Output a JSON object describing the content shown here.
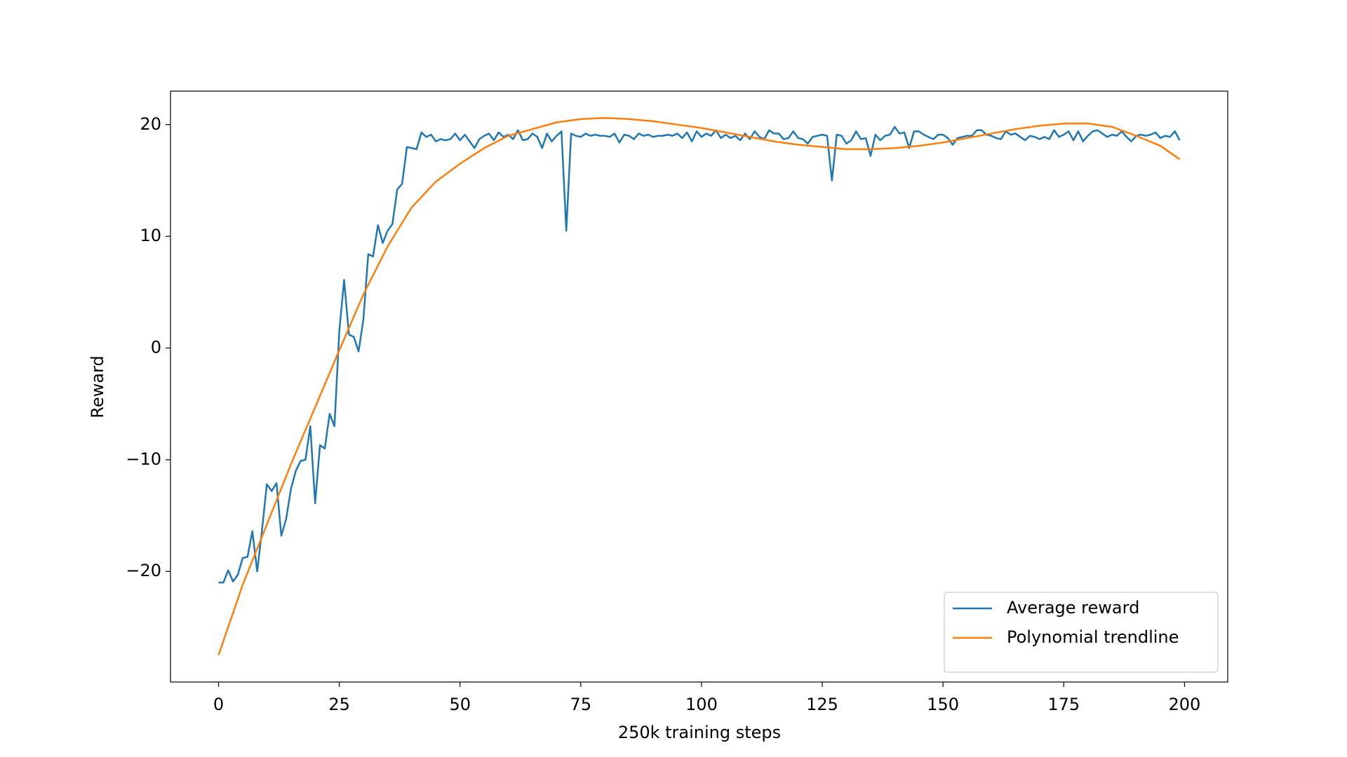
{
  "chart_data": {
    "type": "line",
    "xlabel": "250k training steps",
    "ylabel": "Reward",
    "xlim": [
      -9.95,
      208.95
    ],
    "ylim": [
      -29.9,
      23.0
    ],
    "xticks": [
      0,
      25,
      50,
      75,
      100,
      125,
      150,
      175,
      200
    ],
    "yticks": [
      {
        "value": -20,
        "label": "−20"
      },
      {
        "value": -10,
        "label": "−10"
      },
      0,
      10,
      20
    ],
    "legend": "lower right",
    "series": [
      {
        "name": "Average reward",
        "color": "#1f77b4",
        "x": [
          0,
          1,
          2,
          3,
          4,
          5,
          6,
          7,
          8,
          9,
          10,
          11,
          12,
          13,
          14,
          15,
          16,
          17,
          18,
          19,
          20,
          21,
          22,
          23,
          24,
          25,
          26,
          27,
          28,
          29,
          30,
          31,
          32,
          33,
          34,
          35,
          36,
          37,
          38,
          39,
          40,
          41,
          42,
          43,
          44,
          45,
          46,
          47,
          48,
          49,
          50,
          51,
          52,
          53,
          54,
          55,
          56,
          57,
          58,
          59,
          60,
          61,
          62,
          63,
          64,
          65,
          66,
          67,
          68,
          69,
          70,
          71,
          72,
          73,
          74,
          75,
          76,
          77,
          78,
          79,
          80,
          81,
          82,
          83,
          84,
          85,
          86,
          87,
          88,
          89,
          90,
          91,
          92,
          93,
          94,
          95,
          96,
          97,
          98,
          99,
          100,
          101,
          102,
          103,
          104,
          105,
          106,
          107,
          108,
          109,
          110,
          111,
          112,
          113,
          114,
          115,
          116,
          117,
          118,
          119,
          120,
          121,
          122,
          123,
          124,
          125,
          126,
          127,
          128,
          129,
          130,
          131,
          132,
          133,
          134,
          135,
          136,
          137,
          138,
          139,
          140,
          141,
          142,
          143,
          144,
          145,
          146,
          147,
          148,
          149,
          150,
          151,
          152,
          153,
          154,
          155,
          156,
          157,
          158,
          159,
          160,
          161,
          162,
          163,
          164,
          165,
          166,
          167,
          168,
          169,
          170,
          171,
          172,
          173,
          174,
          175,
          176,
          177,
          178,
          179,
          180,
          181,
          182,
          183,
          184,
          185,
          186,
          187,
          188,
          189,
          190,
          191,
          192,
          193,
          194,
          195,
          196,
          197,
          198,
          199
        ],
        "values": [
          -21,
          -21,
          -19.9,
          -20.9,
          -20.3,
          -18.8,
          -18.7,
          -16.4,
          -20,
          -16.3,
          -12.2,
          -12.8,
          -12.1,
          -16.8,
          -15.3,
          -12.6,
          -11,
          -10.1,
          -10,
          -7,
          -13.9,
          -8.7,
          -9,
          -5.9,
          -7,
          1.5,
          6.1,
          1.2,
          1,
          -0.3,
          2.6,
          8.4,
          8.2,
          11,
          9.4,
          10.5,
          11.1,
          14.2,
          14.7,
          18,
          17.9,
          17.8,
          19.3,
          18.9,
          19.1,
          18.5,
          18.7,
          18.6,
          18.7,
          19.2,
          18.6,
          19.1,
          18.5,
          17.9,
          18.7,
          19,
          19.2,
          18.6,
          19.3,
          18.9,
          19.1,
          18.7,
          19.5,
          18.6,
          18.7,
          19.2,
          18.9,
          17.9,
          19.2,
          18.5,
          19,
          19.4,
          10.5,
          19.2,
          19,
          18.9,
          19.2,
          19,
          19.1,
          19,
          19,
          18.9,
          19.2,
          18.4,
          19.1,
          19,
          18.7,
          19.2,
          19,
          19.1,
          18.9,
          19,
          19,
          19.1,
          19,
          19.2,
          18.8,
          19.3,
          18.5,
          19.4,
          18.9,
          19.2,
          19,
          19.5,
          18.8,
          19.1,
          18.8,
          19,
          18.6,
          19.2,
          18.7,
          19.4,
          18.9,
          18.7,
          19.5,
          19.2,
          19.2,
          18.7,
          18.8,
          19.4,
          18.8,
          18.7,
          18.3,
          18.9,
          19,
          19.1,
          19,
          15,
          19.1,
          19,
          18.3,
          18.6,
          19.4,
          18.7,
          18.8,
          17.2,
          19.1,
          18.6,
          19,
          19.1,
          19.8,
          19.2,
          19.3,
          17.9,
          19.4,
          19.4,
          19.1,
          18.9,
          18.7,
          19.1,
          19.1,
          18.8,
          18.2,
          18.8,
          18.9,
          19,
          19,
          19.5,
          19.5,
          19.1,
          19,
          18.8,
          18.7,
          19.4,
          19.1,
          19.2,
          18.9,
          18.6,
          19,
          18.9,
          18.7,
          18.9,
          18.7,
          19.5,
          18.9,
          19.1,
          19.4,
          18.6,
          19.4,
          18.5,
          19,
          19.4,
          19.5,
          19.2,
          18.9,
          19.1,
          19,
          19.4,
          18.9,
          18.5,
          19,
          19.1,
          19,
          19.1,
          19.3,
          18.8,
          19,
          18.9,
          19.4,
          18.6
        ]
      },
      {
        "name": "Polynomial trendline",
        "color": "#ff7f0e",
        "x": [
          0,
          5,
          10,
          15,
          20,
          25,
          30,
          35,
          40,
          45,
          50,
          55,
          60,
          65,
          70,
          75,
          80,
          85,
          90,
          95,
          100,
          105,
          110,
          115,
          120,
          125,
          130,
          135,
          140,
          145,
          150,
          155,
          160,
          165,
          170,
          175,
          180,
          185,
          190,
          195,
          199
        ],
        "values": [
          -27.5,
          -21.2,
          -15.8,
          -10.4,
          -5.3,
          -0.2,
          4.8,
          9.1,
          12.6,
          14.9,
          16.5,
          17.9,
          19.0,
          19.6,
          20.2,
          20.5,
          20.6,
          20.5,
          20.3,
          20.0,
          19.7,
          19.3,
          18.9,
          18.5,
          18.2,
          18.0,
          17.8,
          17.8,
          17.9,
          18.1,
          18.4,
          18.8,
          19.2,
          19.6,
          19.9,
          20.1,
          20.1,
          19.8,
          19.0,
          18.1,
          16.9
        ]
      }
    ]
  }
}
